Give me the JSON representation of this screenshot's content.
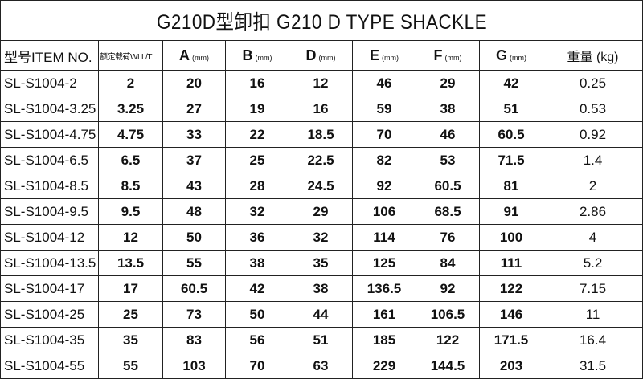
{
  "title": "G210D型卸扣  G210 D TYPE SHACKLE",
  "headers": [
    {
      "label": "型号ITEM NO.",
      "unit": ""
    },
    {
      "label": "额定载荷WLL/T",
      "unit": ""
    },
    {
      "label": "A",
      "unit": "(mm)"
    },
    {
      "label": "B",
      "unit": "(mm)"
    },
    {
      "label": "D",
      "unit": "(mm)"
    },
    {
      "label": "E",
      "unit": "(mm)"
    },
    {
      "label": "F",
      "unit": "(mm)"
    },
    {
      "label": "G",
      "unit": "(mm)"
    },
    {
      "label": "重量 (kg)",
      "unit": ""
    }
  ],
  "rows": [
    [
      "SL-S1004-2",
      "2",
      "20",
      "16",
      "12",
      "46",
      "29",
      "42",
      "0.25"
    ],
    [
      "SL-S1004-3.25",
      "3.25",
      "27",
      "19",
      "16",
      "59",
      "38",
      "51",
      "0.53"
    ],
    [
      "SL-S1004-4.75",
      "4.75",
      "33",
      "22",
      "18.5",
      "70",
      "46",
      "60.5",
      "0.92"
    ],
    [
      "SL-S1004-6.5",
      "6.5",
      "37",
      "25",
      "22.5",
      "82",
      "53",
      "71.5",
      "1.4"
    ],
    [
      "SL-S1004-8.5",
      "8.5",
      "43",
      "28",
      "24.5",
      "92",
      "60.5",
      "81",
      "2"
    ],
    [
      "SL-S1004-9.5",
      "9.5",
      "48",
      "32",
      "29",
      "106",
      "68.5",
      "91",
      "2.86"
    ],
    [
      "SL-S1004-12",
      "12",
      "50",
      "36",
      "32",
      "114",
      "76",
      "100",
      "4"
    ],
    [
      "SL-S1004-13.5",
      "13.5",
      "55",
      "38",
      "35",
      "125",
      "84",
      "111",
      "5.2"
    ],
    [
      "SL-S1004-17",
      "17",
      "60.5",
      "42",
      "38",
      "136.5",
      "92",
      "122",
      "7.15"
    ],
    [
      "SL-S1004-25",
      "25",
      "73",
      "50",
      "44",
      "161",
      "106.5",
      "146",
      "11"
    ],
    [
      "SL-S1004-35",
      "35",
      "83",
      "56",
      "51",
      "185",
      "122",
      "171.5",
      "16.4"
    ],
    [
      "SL-S1004-55",
      "55",
      "103",
      "70",
      "63",
      "229",
      "144.5",
      "203",
      "31.5"
    ]
  ]
}
